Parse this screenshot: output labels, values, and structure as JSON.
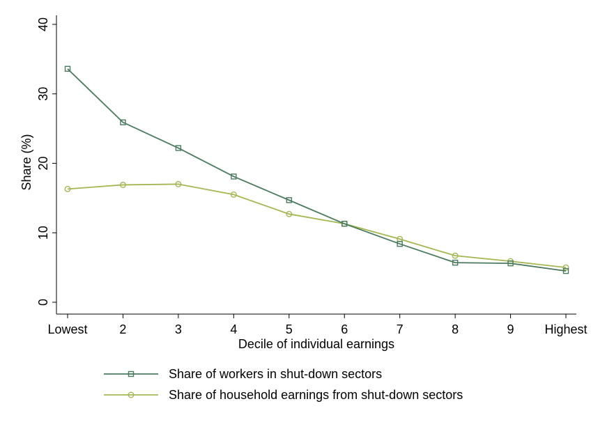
{
  "chart_data": {
    "type": "line",
    "xlabel": "Decile of individual earnings",
    "ylabel": "Share (%)",
    "categories": [
      "Lowest",
      "2",
      "3",
      "4",
      "5",
      "6",
      "7",
      "8",
      "9",
      "Highest"
    ],
    "ylim": [
      0,
      40
    ],
    "yticks": [
      "0",
      "10",
      "20",
      "30",
      "40"
    ],
    "grid": false,
    "legend_position": "bottom",
    "series": [
      {
        "name": "Share of workers in shut-down sectors",
        "marker": "square",
        "color": "#4a7a5e",
        "values": [
          33.6,
          25.9,
          22.2,
          18.1,
          14.7,
          11.3,
          8.4,
          5.7,
          5.6,
          4.5
        ]
      },
      {
        "name": "Share of household earnings from shut-down sectors",
        "marker": "circle",
        "color": "#a3b752",
        "values": [
          16.3,
          16.9,
          17.0,
          15.5,
          12.7,
          11.3,
          9.1,
          6.7,
          5.9,
          5.0
        ]
      }
    ]
  }
}
